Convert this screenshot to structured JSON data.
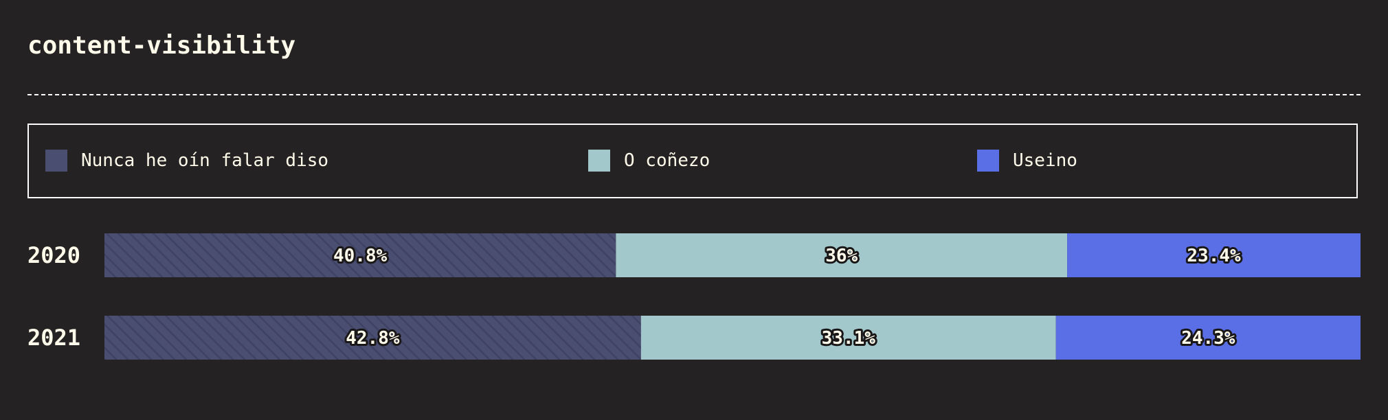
{
  "title": "content-visibility",
  "legend": [
    {
      "label": "Nunca he oín falar diso",
      "color": "#4a4e71"
    },
    {
      "label": "O coñezo",
      "color": "#a2c8cb"
    },
    {
      "label": "Useino",
      "color": "#5a6ee6"
    }
  ],
  "chart_data": {
    "type": "bar",
    "orientation": "horizontal",
    "stacked": true,
    "normalized_percent": true,
    "categories": [
      "2020",
      "2021"
    ],
    "series": [
      {
        "name": "Nunca he oín falar diso",
        "values": [
          40.8,
          42.8
        ],
        "labels": [
          "40.8%",
          "42.8%"
        ],
        "color": "#4a4e71"
      },
      {
        "name": "O coñezo",
        "values": [
          36,
          33.1
        ],
        "labels": [
          "36%",
          "33.1%"
        ],
        "color": "#a2c8cb"
      },
      {
        "name": "Useino",
        "values": [
          23.4,
          24.3
        ],
        "labels": [
          "23.4%",
          "24.3%"
        ],
        "color": "#5a6ee6"
      }
    ],
    "title": "content-visibility",
    "legend_position": "top",
    "grid": false
  }
}
